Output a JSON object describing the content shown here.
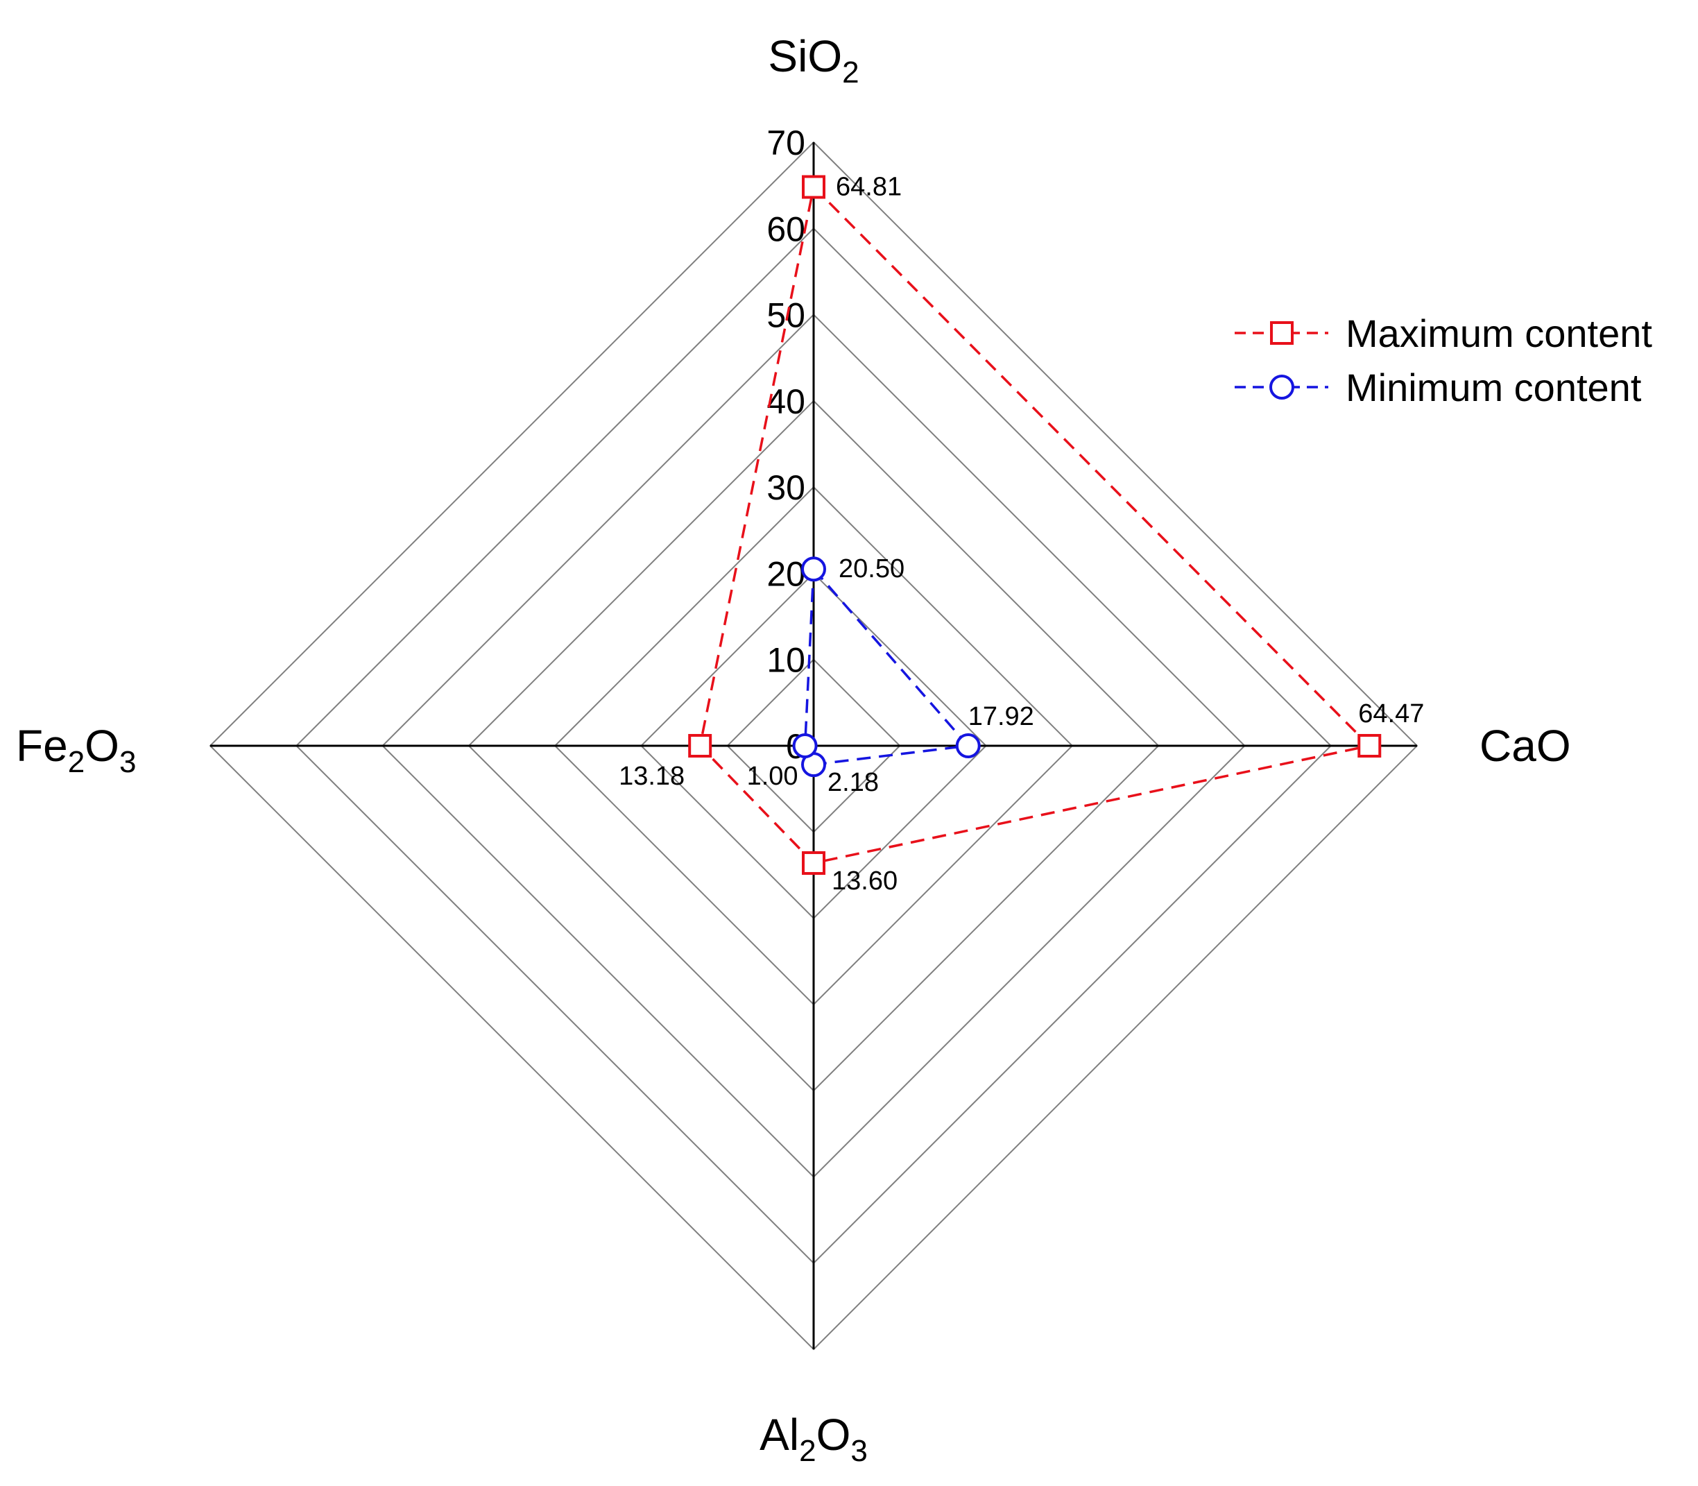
{
  "chart_data": {
    "type": "radar",
    "axes": [
      {
        "id": "sio2",
        "base": "SiO",
        "sub": "2",
        "tail": ""
      },
      {
        "id": "cao",
        "base": "CaO",
        "sub": "",
        "tail": ""
      },
      {
        "id": "al2o3",
        "base": "Al",
        "sub": "2",
        "tail": "O",
        "sub2": "3"
      },
      {
        "id": "fe2o3",
        "base": "Fe",
        "sub": "2",
        "tail": "O",
        "sub2": "3"
      }
    ],
    "radial_range": [
      0,
      70
    ],
    "radial_ticks": [
      0,
      10,
      20,
      30,
      40,
      50,
      60,
      70
    ],
    "radial_tick_labels": [
      "0",
      "10",
      "20",
      "30",
      "40",
      "50",
      "60",
      "70"
    ],
    "grid": true,
    "legend_position": "top-right",
    "series": [
      {
        "name": "Maximum content",
        "marker": "square",
        "color": "#e8101a",
        "values": [
          64.81,
          64.47,
          13.6,
          13.18
        ],
        "labels": [
          "64.81",
          "64.47",
          "13.60",
          "13.18"
        ]
      },
      {
        "name": "Minimum content",
        "marker": "circle",
        "color": "#1515e0",
        "values": [
          20.5,
          17.92,
          2.18,
          1.0
        ],
        "labels": [
          "20.50",
          "17.92",
          "2.18",
          "1.00"
        ]
      }
    ]
  }
}
